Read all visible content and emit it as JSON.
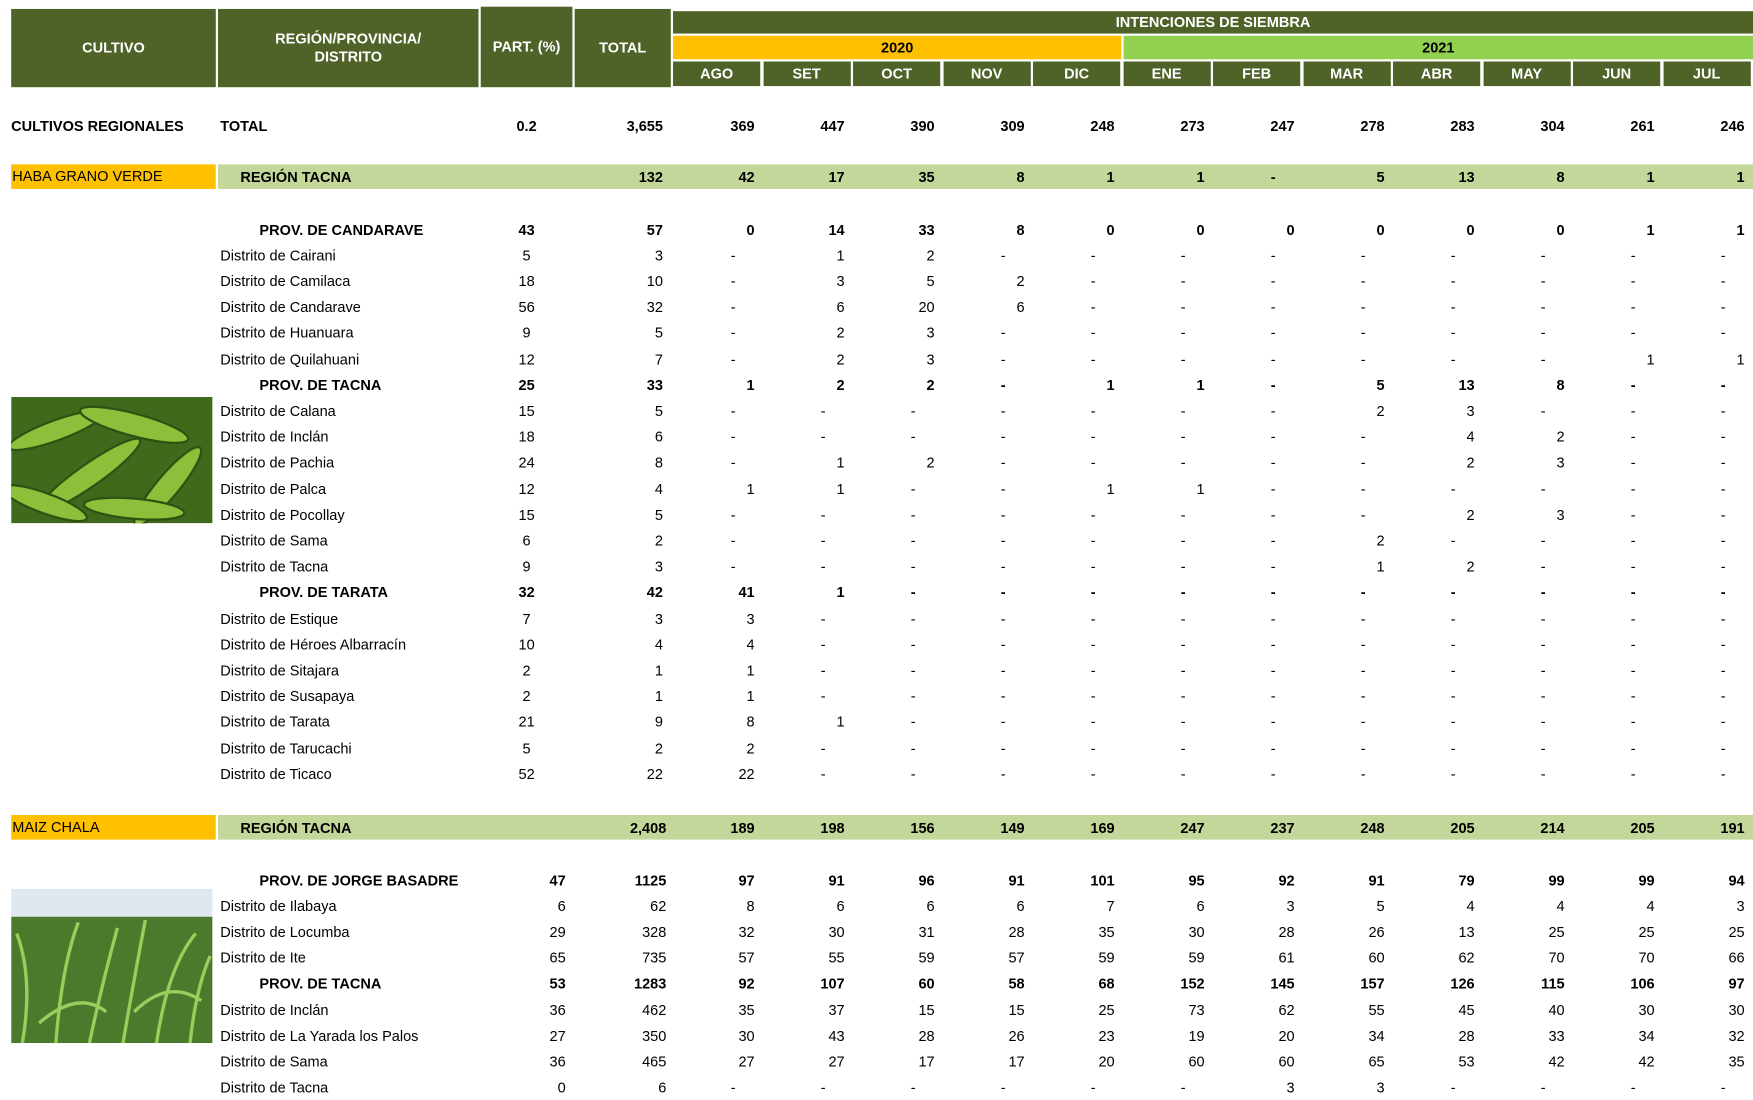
{
  "header": {
    "cultivo": "CULTIVO",
    "region": [
      "REGIÓN/PROVINCIA/",
      "DISTRITO"
    ],
    "part": "PART. (%)",
    "total": "TOTAL",
    "intenciones": "INTENCIONES DE SIEMBRA",
    "year1": "2020",
    "year2": "2021",
    "months": [
      "AGO",
      "SET",
      "OCT",
      "NOV",
      "DIC",
      "ENE",
      "FEB",
      "MAR",
      "ABR",
      "MAY",
      "JUN",
      "JUL"
    ]
  },
  "summary": {
    "cultivo": "CULTIVOS REGIONALES",
    "name": "TOTAL",
    "part": 0.2,
    "total": "3,655",
    "months": [
      369,
      447,
      390,
      309,
      248,
      273,
      247,
      278,
      283,
      304,
      261,
      246
    ]
  },
  "sections": [
    {
      "cultivo": "HABA GRANO VERDE",
      "region": {
        "name": "REGIÓN TACNA",
        "total": 132,
        "months": [
          42,
          17,
          35,
          8,
          1,
          1,
          "-",
          5,
          13,
          8,
          1,
          1
        ]
      },
      "provinces": [
        {
          "name": "PROV. DE CANDARAVE",
          "part": 43,
          "total": 57,
          "months": [
            0,
            14,
            33,
            8,
            0,
            0,
            0,
            0,
            0,
            0,
            1,
            1
          ],
          "districts": [
            {
              "name": "Distrito de Cairani",
              "part": 5,
              "total": 3,
              "months": [
                "-",
                1,
                2,
                "-",
                "-",
                "-",
                "-",
                "-",
                "-",
                "-",
                "-",
                "-"
              ]
            },
            {
              "name": "Distrito de Camilaca",
              "part": 18,
              "total": 10,
              "months": [
                "-",
                3,
                5,
                2,
                "-",
                "-",
                "-",
                "-",
                "-",
                "-",
                "-",
                "-"
              ]
            },
            {
              "name": "Distrito de Candarave",
              "part": 56,
              "total": 32,
              "months": [
                "-",
                6,
                20,
                6,
                "-",
                "-",
                "-",
                "-",
                "-",
                "-",
                "-",
                "-"
              ]
            },
            {
              "name": "Distrito de Huanuara",
              "part": 9,
              "total": 5,
              "months": [
                "-",
                2,
                3,
                "-",
                "-",
                "-",
                "-",
                "-",
                "-",
                "-",
                "-",
                "-"
              ]
            },
            {
              "name": "Distrito de Quilahuani",
              "part": 12,
              "total": 7,
              "months": [
                "-",
                2,
                3,
                "-",
                "-",
                "-",
                "-",
                "-",
                "-",
                "-",
                1,
                1
              ]
            }
          ]
        },
        {
          "name": "PROV. DE TACNA",
          "part": 25,
          "total": 33,
          "months": [
            1,
            2,
            2,
            "-",
            1,
            1,
            "-",
            5,
            13,
            8,
            "-",
            "-"
          ],
          "districts": [
            {
              "name": "Distrito de Calana",
              "part": 15,
              "total": 5,
              "months": [
                "-",
                "-",
                "-",
                "-",
                "-",
                "-",
                "-",
                2,
                3,
                "-",
                "-",
                "-"
              ]
            },
            {
              "name": "Distrito de Inclán",
              "part": 18,
              "total": 6,
              "months": [
                "-",
                "-",
                "-",
                "-",
                "-",
                "-",
                "-",
                "-",
                4,
                2,
                "-",
                "-"
              ]
            },
            {
              "name": "Distrito de Pachia",
              "part": 24,
              "total": 8,
              "months": [
                "-",
                1,
                2,
                "-",
                "-",
                "-",
                "-",
                "-",
                2,
                3,
                "-",
                "-"
              ]
            },
            {
              "name": "Distrito de Palca",
              "part": 12,
              "total": 4,
              "months": [
                1,
                1,
                "-",
                "-",
                1,
                1,
                "-",
                "-",
                "-",
                "-",
                "-",
                "-"
              ]
            },
            {
              "name": "Distrito de Pocollay",
              "part": 15,
              "total": 5,
              "months": [
                "-",
                "-",
                "-",
                "-",
                "-",
                "-",
                "-",
                "-",
                2,
                3,
                "-",
                "-"
              ]
            },
            {
              "name": "Distrito de Sama",
              "part": 6,
              "total": 2,
              "months": [
                "-",
                "-",
                "-",
                "-",
                "-",
                "-",
                "-",
                2,
                "-",
                "-",
                "-",
                "-"
              ]
            },
            {
              "name": "Distrito de Tacna",
              "part": 9,
              "total": 3,
              "months": [
                "-",
                "-",
                "-",
                "-",
                "-",
                "-",
                "-",
                1,
                2,
                "-",
                "-",
                "-"
              ]
            }
          ]
        },
        {
          "name": "PROV. DE TARATA",
          "part": 32,
          "total": 42,
          "months": [
            41,
            1,
            "-",
            "-",
            "-",
            "-",
            "-",
            "-",
            "-",
            "-",
            "-",
            "-"
          ],
          "districts": [
            {
              "name": "Distrito de Estique",
              "part": 7,
              "total": 3,
              "months": [
                3,
                "-",
                "-",
                "-",
                "-",
                "-",
                "-",
                "-",
                "-",
                "-",
                "-",
                "-"
              ]
            },
            {
              "name": "Distrito de Héroes Albarracín",
              "part": 10,
              "total": 4,
              "months": [
                4,
                "-",
                "-",
                "-",
                "-",
                "-",
                "-",
                "-",
                "-",
                "-",
                "-",
                "-"
              ]
            },
            {
              "name": "Distrito de Sitajara",
              "part": 2,
              "total": 1,
              "months": [
                1,
                "-",
                "-",
                "-",
                "-",
                "-",
                "-",
                "-",
                "-",
                "-",
                "-",
                "-"
              ]
            },
            {
              "name": "Distrito de Susapaya",
              "part": 2,
              "total": 1,
              "months": [
                1,
                "-",
                "-",
                "-",
                "-",
                "-",
                "-",
                "-",
                "-",
                "-",
                "-",
                "-"
              ]
            },
            {
              "name": "Distrito de Tarata",
              "part": 21,
              "total": 9,
              "months": [
                8,
                1,
                "-",
                "-",
                "-",
                "-",
                "-",
                "-",
                "-",
                "-",
                "-",
                "-"
              ]
            },
            {
              "name": "Distrito de Tarucachi",
              "part": 5,
              "total": 2,
              "months": [
                2,
                "-",
                "-",
                "-",
                "-",
                "-",
                "-",
                "-",
                "-",
                "-",
                "-",
                "-"
              ]
            },
            {
              "name": "Distrito de Ticaco",
              "part": 52,
              "total": 22,
              "months": [
                22,
                "-",
                "-",
                "-",
                "-",
                "-",
                "-",
                "-",
                "-",
                "-",
                "-",
                "-"
              ]
            }
          ]
        }
      ]
    },
    {
      "cultivo": "MAIZ CHALA",
      "region": {
        "name": "REGIÓN TACNA",
        "total": "2,408",
        "months": [
          189,
          198,
          156,
          149,
          169,
          247,
          237,
          248,
          205,
          214,
          205,
          191
        ]
      },
      "provinces": [
        {
          "name": "PROV. DE JORGE BASADRE",
          "part": 47,
          "total": 1125,
          "months": [
            97,
            91,
            96,
            91,
            101,
            95,
            92,
            91,
            79,
            99,
            99,
            94
          ],
          "districts": [
            {
              "name": "Distrito de Ilabaya",
              "part": 6,
              "total": 62,
              "months": [
                8,
                6,
                6,
                6,
                7,
                6,
                3,
                5,
                4,
                4,
                4,
                3
              ]
            },
            {
              "name": "Distrito de Locumba",
              "part": 29,
              "total": 328,
              "months": [
                32,
                30,
                31,
                28,
                35,
                30,
                28,
                26,
                13,
                25,
                25,
                25
              ]
            },
            {
              "name": "Distrito de Ite",
              "part": 65,
              "total": 735,
              "months": [
                57,
                55,
                59,
                57,
                59,
                59,
                61,
                60,
                62,
                70,
                70,
                66
              ]
            }
          ]
        },
        {
          "name": "PROV. DE TACNA",
          "part": 53,
          "total": 1283,
          "months": [
            92,
            107,
            60,
            58,
            68,
            152,
            145,
            157,
            126,
            115,
            106,
            97
          ],
          "districts": [
            {
              "name": "Distrito de Inclán",
              "part": 36,
              "total": 462,
              "months": [
                35,
                37,
                15,
                15,
                25,
                73,
                62,
                55,
                45,
                40,
                30,
                30
              ]
            },
            {
              "name": "Distrito de La Yarada los Palos",
              "part": 27,
              "total": 350,
              "months": [
                30,
                43,
                28,
                26,
                23,
                19,
                20,
                34,
                28,
                33,
                34,
                32
              ]
            },
            {
              "name": "Distrito de Sama",
              "part": 36,
              "total": 465,
              "months": [
                27,
                27,
                17,
                17,
                20,
                60,
                60,
                65,
                53,
                42,
                42,
                35
              ]
            },
            {
              "name": "Distrito de Tacna",
              "part": 0,
              "total": 6,
              "months": [
                "-",
                "-",
                "-",
                "-",
                "-",
                "-",
                3,
                3,
                "-",
                "-",
                "-",
                "-"
              ]
            }
          ]
        }
      ]
    }
  ]
}
